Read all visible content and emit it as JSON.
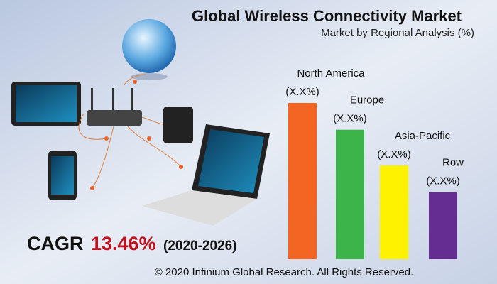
{
  "chart_data": {
    "type": "bar",
    "title": "Global Wireless Connectivity Market",
    "subtitle": "Market by Regional Analysis (%)",
    "categories": [
      "North America",
      "Europe",
      "Asia-Pacific",
      "Row"
    ],
    "values": [
      35,
      29,
      21,
      15
    ],
    "value_labels": [
      "(X.X%)",
      "(X.X%)",
      "(X.X%)",
      "(X.X%)"
    ],
    "colors": [
      "#f26522",
      "#3cb44a",
      "#fff200",
      "#662d91"
    ],
    "cagr": {
      "label": "CAGR",
      "value": "13.46%",
      "period": "(2020-2026)"
    },
    "footer": "© 2020 Infinium Global Research. All Rights Reserved."
  }
}
